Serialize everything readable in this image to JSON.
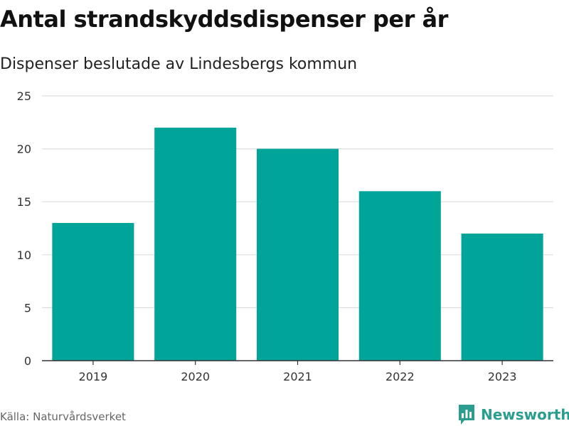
{
  "title": "Antal strandskyddsdispenser per år",
  "subtitle": "Dispenser beslutade av Lindesbergs kommun",
  "source": "Källa: Naturvårdsverket",
  "brand": {
    "name": "Newsworthy",
    "icon": "newsworthy-logo-icon",
    "color": "#2a9d8f"
  },
  "colors": {
    "bar": "#00a499",
    "grid": "#dddddd",
    "axis": "#333333"
  },
  "chart_data": {
    "type": "bar",
    "title": "Antal strandskyddsdispenser per år",
    "subtitle": "Dispenser beslutade av Lindesbergs kommun",
    "categories": [
      "2019",
      "2020",
      "2021",
      "2022",
      "2023"
    ],
    "values": [
      13,
      22,
      20,
      16,
      12
    ],
    "xlabel": "",
    "ylabel": "",
    "ylim": [
      0,
      25
    ],
    "yticks": [
      0,
      5,
      10,
      15,
      20,
      25
    ],
    "grid": true,
    "legend": "none"
  }
}
